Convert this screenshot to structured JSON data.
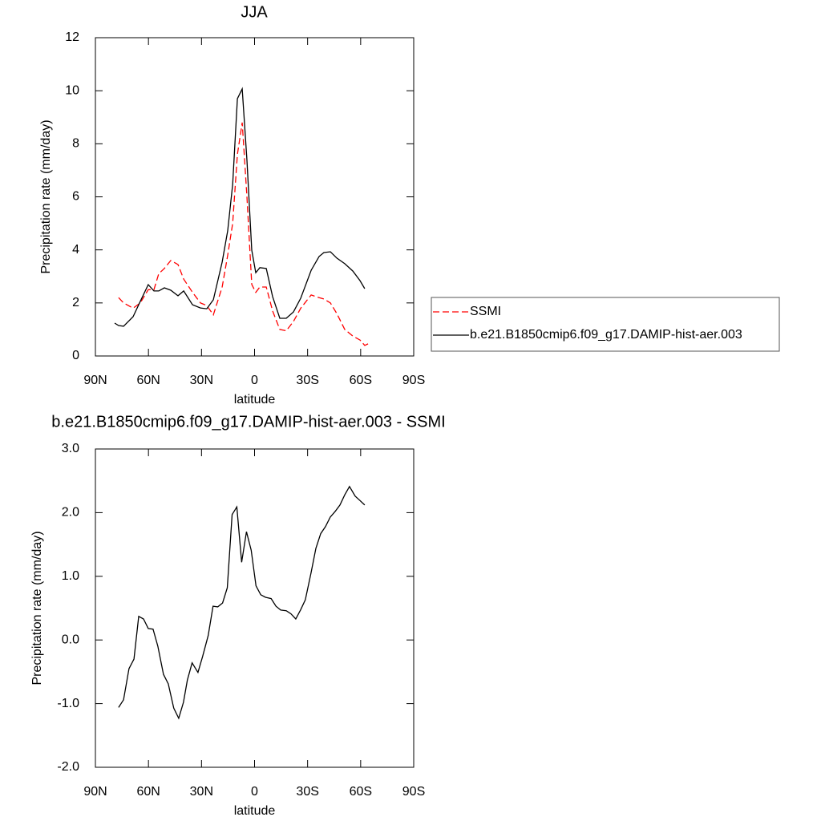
{
  "chart_data": [
    {
      "type": "line",
      "title": "JJA",
      "xlabel": "latitude",
      "ylabel": "Precipitation rate (mm/day)",
      "x": [
        79.1,
        76.9,
        74.1,
        68.7,
        64.6,
        60.1,
        56.9,
        54.2,
        51.0,
        47.4,
        43.3,
        40.1,
        35.1,
        30.6,
        27.0,
        23.3,
        18.3,
        15.2,
        12.4,
        9.7,
        7.0,
        4.3,
        1.6,
        -0.7,
        -3.0,
        -6.6,
        -10.2,
        -14.3,
        -17.9,
        -22.0,
        -26.1,
        -32.0,
        -36.5,
        -39.2,
        -42.9,
        -46.5,
        -51.0,
        -55.6,
        -59.6,
        -62.3,
        -65.5
      ],
      "series": [
        {
          "name": "SSMI",
          "color": "#ff0000",
          "style": "dashed",
          "values": [
            null,
            2.2,
            2.0,
            1.8,
            2.0,
            2.5,
            2.5,
            3.1,
            3.3,
            3.6,
            3.45,
            2.9,
            2.4,
            2.0,
            1.9,
            1.55,
            2.6,
            3.8,
            5.0,
            7.6,
            8.8,
            6.0,
            2.7,
            2.4,
            2.6,
            2.6,
            1.7,
            1.0,
            0.95,
            1.3,
            1.8,
            2.3,
            2.2,
            2.15,
            2.0,
            1.6,
            1.0,
            0.75,
            0.6,
            0.4,
            0.5
          ]
        },
        {
          "name": "b.e21.B1850cmip6.f09_g17.DAMIP-hist-aer.003",
          "color": "#000000",
          "style": "solid",
          "values": [
            1.24,
            1.15,
            1.12,
            1.48,
            2.06,
            2.69,
            2.45,
            2.45,
            2.57,
            2.48,
            2.27,
            2.45,
            1.93,
            1.81,
            1.78,
            2.12,
            3.54,
            4.72,
            6.47,
            9.7,
            10.07,
            7.38,
            3.99,
            3.14,
            3.33,
            3.3,
            2.24,
            1.42,
            1.42,
            1.66,
            2.18,
            3.23,
            3.75,
            3.9,
            3.93,
            3.69,
            3.48,
            3.2,
            2.84,
            2.54,
            null
          ]
        }
      ],
      "xlim": [
        90,
        -90
      ],
      "xticks": [
        {
          "value": 90,
          "label": "90N"
        },
        {
          "value": 60,
          "label": "60N"
        },
        {
          "value": 30,
          "label": "30N"
        },
        0,
        {
          "value": -30,
          "label": "30S"
        },
        {
          "value": -60,
          "label": "60S"
        },
        {
          "value": -90,
          "label": "90S"
        }
      ],
      "ylim": [
        0,
        12
      ],
      "yticks": [
        0,
        2,
        4,
        6,
        8,
        10,
        12
      ],
      "legend": "right"
    },
    {
      "type": "line",
      "title": "b.e21.B1850cmip6.f09_g17.DAMIP-hist-aer.003 - SSMI",
      "xlabel": "latitude",
      "ylabel": "Precipitation rate (mm/day)",
      "x": [
        76.9,
        74.1,
        71.0,
        68.2,
        65.5,
        62.8,
        60.1,
        57.4,
        54.7,
        51.5,
        48.8,
        45.7,
        42.9,
        40.2,
        38.0,
        35.3,
        32.0,
        29.4,
        26.2,
        23.5,
        20.8,
        18.1,
        15.4,
        12.7,
        10.0,
        7.3,
        4.6,
        1.9,
        -0.8,
        -3.5,
        -6.2,
        -9.4,
        -12.1,
        -14.8,
        -17.9,
        -20.6,
        -23.3,
        -26.0,
        -28.7,
        -31.9,
        -34.7,
        -37.4,
        -40.1,
        -42.8,
        -45.6,
        -48.3,
        -51.0,
        -53.7,
        -56.9,
        -59.6,
        -62.3
      ],
      "values": [
        -1.06,
        -0.94,
        -0.45,
        -0.3,
        0.37,
        0.33,
        0.18,
        0.17,
        -0.1,
        -0.54,
        -0.69,
        -1.07,
        -1.23,
        -0.98,
        -0.63,
        -0.36,
        -0.51,
        -0.26,
        0.07,
        0.53,
        0.52,
        0.58,
        0.82,
        1.97,
        2.09,
        1.22,
        1.7,
        1.41,
        0.85,
        0.71,
        0.67,
        0.65,
        0.53,
        0.47,
        0.46,
        0.41,
        0.33,
        0.47,
        0.63,
        1.05,
        1.44,
        1.67,
        1.78,
        1.93,
        2.02,
        2.12,
        2.28,
        2.41,
        2.26,
        2.19,
        2.12
      ],
      "color": "#000000",
      "xlim": [
        90,
        -90
      ],
      "xticks": [
        {
          "value": 90,
          "label": "90N"
        },
        {
          "value": 60,
          "label": "60N"
        },
        {
          "value": 30,
          "label": "30N"
        },
        0,
        {
          "value": -30,
          "label": "30S"
        },
        {
          "value": -60,
          "label": "60S"
        },
        {
          "value": -90,
          "label": "90S"
        }
      ],
      "ylim": [
        -2,
        3
      ],
      "yticks": [
        {
          "value": -2,
          "label": "-2.0"
        },
        {
          "value": -1,
          "label": "-1.0"
        },
        {
          "value": 0,
          "label": "0.0"
        },
        {
          "value": 1,
          "label": "1.0"
        },
        {
          "value": 2,
          "label": "2.0"
        },
        {
          "value": 3,
          "label": "3.0"
        }
      ]
    }
  ]
}
